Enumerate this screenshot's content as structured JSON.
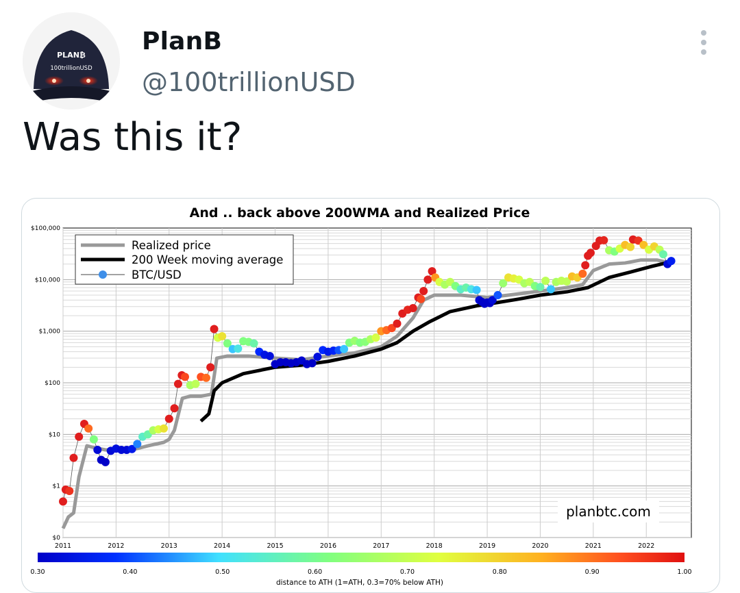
{
  "tweet": {
    "author_name": "PlanB",
    "author_handle": "@100trillionUSD",
    "avatar_cap_text_top": "PLAN₿",
    "avatar_cap_text_bottom": "100trillionUSD",
    "text": "Was this it?",
    "more_icon": "vertical-ellipsis-icon"
  },
  "colors": {
    "ath_high": "#e8332b",
    "ath_low": "#1010e0",
    "realized": "#999999",
    "wma": "#000000",
    "secondary_text": "#536471"
  },
  "chart_data": {
    "type": "scatter",
    "title": "And .. back above 200WMA and Realized Price",
    "watermark": "planbtc.com",
    "y_scale": "log",
    "ylim": [
      0.1,
      100000
    ],
    "xlim": [
      2011,
      2022.85
    ],
    "y_ticks": [
      {
        "value": 0.1,
        "label": "$0"
      },
      {
        "value": 1,
        "label": "$1"
      },
      {
        "value": 10,
        "label": "$10"
      },
      {
        "value": 100,
        "label": "$100"
      },
      {
        "value": 1000,
        "label": "$1,000"
      },
      {
        "value": 10000,
        "label": "$10,000"
      },
      {
        "value": 100000,
        "label": "$100,000"
      }
    ],
    "x_ticks": [
      "2011",
      "2012",
      "2013",
      "2014",
      "2015",
      "2016",
      "2017",
      "2018",
      "2019",
      "2020",
      "2021",
      "2022"
    ],
    "grid": true,
    "legend_position": "top-left",
    "legend": [
      {
        "label": "Realized price",
        "style": "realized"
      },
      {
        "label": "200 Week moving average",
        "style": "wma"
      },
      {
        "label": "BTC/USD",
        "style": "dots"
      }
    ],
    "colorbar": {
      "label": "distance to ATH (1=ATH, 0.3=70% below ATH)",
      "ticks": [
        "0.30",
        "0.40",
        "0.50",
        "0.60",
        "0.70",
        "0.80",
        "0.90",
        "1.00"
      ],
      "min": 0.3,
      "max": 1.0
    },
    "series": [
      {
        "name": "Realized price",
        "points": [
          [
            2011.0,
            0.15
          ],
          [
            2011.1,
            0.25
          ],
          [
            2011.2,
            0.3
          ],
          [
            2011.3,
            1.5
          ],
          [
            2011.45,
            6
          ],
          [
            2011.6,
            5.5
          ],
          [
            2011.8,
            5
          ],
          [
            2012.0,
            5
          ],
          [
            2012.3,
            5
          ],
          [
            2012.6,
            6
          ],
          [
            2012.9,
            7
          ],
          [
            2013.0,
            8
          ],
          [
            2013.1,
            12
          ],
          [
            2013.25,
            50
          ],
          [
            2013.4,
            55
          ],
          [
            2013.6,
            55
          ],
          [
            2013.8,
            60
          ],
          [
            2013.9,
            300
          ],
          [
            2014.1,
            330
          ],
          [
            2014.5,
            330
          ],
          [
            2015.0,
            300
          ],
          [
            2015.5,
            280
          ],
          [
            2016.0,
            330
          ],
          [
            2016.5,
            380
          ],
          [
            2017.0,
            500
          ],
          [
            2017.3,
            800
          ],
          [
            2017.6,
            1800
          ],
          [
            2017.8,
            4000
          ],
          [
            2018.0,
            5000
          ],
          [
            2018.5,
            5000
          ],
          [
            2019.0,
            4500
          ],
          [
            2019.4,
            5000
          ],
          [
            2020.0,
            6000
          ],
          [
            2020.5,
            7000
          ],
          [
            2020.8,
            8000
          ],
          [
            2021.0,
            15000
          ],
          [
            2021.3,
            20000
          ],
          [
            2021.6,
            21000
          ],
          [
            2021.9,
            24000
          ],
          [
            2022.2,
            24000
          ],
          [
            2022.45,
            21000
          ]
        ]
      },
      {
        "name": "200 Week moving average",
        "points": [
          [
            2013.6,
            18
          ],
          [
            2013.75,
            25
          ],
          [
            2013.85,
            70
          ],
          [
            2014.0,
            100
          ],
          [
            2014.4,
            150
          ],
          [
            2015.0,
            200
          ],
          [
            2015.5,
            220
          ],
          [
            2016.0,
            260
          ],
          [
            2016.5,
            330
          ],
          [
            2017.0,
            450
          ],
          [
            2017.3,
            600
          ],
          [
            2017.6,
            1000
          ],
          [
            2017.9,
            1500
          ],
          [
            2018.3,
            2400
          ],
          [
            2018.8,
            3100
          ],
          [
            2019.2,
            3600
          ],
          [
            2019.6,
            4200
          ],
          [
            2020.0,
            5000
          ],
          [
            2020.5,
            5800
          ],
          [
            2020.9,
            7000
          ],
          [
            2021.3,
            11000
          ],
          [
            2021.7,
            14000
          ],
          [
            2022.1,
            18000
          ],
          [
            2022.45,
            22000
          ]
        ]
      },
      {
        "name": "BTC/USD",
        "points": [
          [
            2011.0,
            0.5,
            1.0
          ],
          [
            2011.05,
            0.85,
            1.0
          ],
          [
            2011.12,
            0.8,
            0.95
          ],
          [
            2011.2,
            3.5,
            1.0
          ],
          [
            2011.3,
            9,
            1.0
          ],
          [
            2011.4,
            16,
            1.0
          ],
          [
            2011.48,
            13,
            0.85
          ],
          [
            2011.58,
            8,
            0.55
          ],
          [
            2011.65,
            5,
            0.32
          ],
          [
            2011.72,
            3.2,
            0.3
          ],
          [
            2011.8,
            2.9,
            0.3
          ],
          [
            2011.9,
            4.8,
            0.32
          ],
          [
            2012.0,
            5.3,
            0.33
          ],
          [
            2012.1,
            5,
            0.32
          ],
          [
            2012.2,
            5,
            0.32
          ],
          [
            2012.3,
            5.2,
            0.35
          ],
          [
            2012.4,
            6.5,
            0.42
          ],
          [
            2012.5,
            9,
            0.5
          ],
          [
            2012.6,
            10,
            0.52
          ],
          [
            2012.7,
            12,
            0.6
          ],
          [
            2012.8,
            12.5,
            0.65
          ],
          [
            2012.9,
            13,
            0.7
          ],
          [
            2013.0,
            20,
            1.0
          ],
          [
            2013.1,
            32,
            1.0
          ],
          [
            2013.17,
            95,
            1.0
          ],
          [
            2013.24,
            140,
            1.0
          ],
          [
            2013.3,
            130,
            0.9
          ],
          [
            2013.4,
            90,
            0.6
          ],
          [
            2013.5,
            95,
            0.62
          ],
          [
            2013.6,
            130,
            0.88
          ],
          [
            2013.7,
            125,
            0.85
          ],
          [
            2013.78,
            200,
            1.0
          ],
          [
            2013.85,
            1100,
            1.0
          ],
          [
            2013.92,
            750,
            0.65
          ],
          [
            2014.0,
            800,
            0.7
          ],
          [
            2014.1,
            580,
            0.55
          ],
          [
            2014.2,
            450,
            0.45
          ],
          [
            2014.3,
            460,
            0.48
          ],
          [
            2014.4,
            640,
            0.55
          ],
          [
            2014.5,
            620,
            0.55
          ],
          [
            2014.6,
            580,
            0.52
          ],
          [
            2014.7,
            400,
            0.38
          ],
          [
            2014.8,
            350,
            0.34
          ],
          [
            2014.9,
            330,
            0.33
          ],
          [
            2015.0,
            230,
            0.3
          ],
          [
            2015.1,
            250,
            0.3
          ],
          [
            2015.2,
            250,
            0.3
          ],
          [
            2015.3,
            240,
            0.3
          ],
          [
            2015.4,
            250,
            0.3
          ],
          [
            2015.5,
            270,
            0.31
          ],
          [
            2015.6,
            230,
            0.3
          ],
          [
            2015.7,
            240,
            0.3
          ],
          [
            2015.8,
            320,
            0.33
          ],
          [
            2015.9,
            430,
            0.38
          ],
          [
            2016.0,
            400,
            0.35
          ],
          [
            2016.1,
            420,
            0.37
          ],
          [
            2016.2,
            430,
            0.4
          ],
          [
            2016.3,
            450,
            0.45
          ],
          [
            2016.4,
            600,
            0.55
          ],
          [
            2016.5,
            650,
            0.58
          ],
          [
            2016.6,
            600,
            0.55
          ],
          [
            2016.7,
            620,
            0.56
          ],
          [
            2016.8,
            700,
            0.6
          ],
          [
            2016.9,
            750,
            0.65
          ],
          [
            2017.0,
            1000,
            0.8
          ],
          [
            2017.1,
            1050,
            0.85
          ],
          [
            2017.2,
            1150,
            0.9
          ],
          [
            2017.3,
            1400,
            1.0
          ],
          [
            2017.4,
            2200,
            1.0
          ],
          [
            2017.5,
            2600,
            0.98
          ],
          [
            2017.6,
            2800,
            1.0
          ],
          [
            2017.7,
            4500,
            1.0
          ],
          [
            2017.75,
            4200,
            0.9
          ],
          [
            2017.8,
            6000,
            1.0
          ],
          [
            2017.88,
            10000,
            1.0
          ],
          [
            2017.96,
            14500,
            1.0
          ],
          [
            2018.02,
            11000,
            0.8
          ],
          [
            2018.1,
            9000,
            0.65
          ],
          [
            2018.2,
            8000,
            0.6
          ],
          [
            2018.3,
            9000,
            0.62
          ],
          [
            2018.4,
            7500,
            0.55
          ],
          [
            2018.5,
            6500,
            0.5
          ],
          [
            2018.6,
            7000,
            0.52
          ],
          [
            2018.7,
            6500,
            0.48
          ],
          [
            2018.8,
            6300,
            0.45
          ],
          [
            2018.85,
            4000,
            0.32
          ],
          [
            2018.9,
            3700,
            0.3
          ],
          [
            2018.95,
            3400,
            0.3
          ],
          [
            2019.0,
            3600,
            0.3
          ],
          [
            2019.05,
            3500,
            0.3
          ],
          [
            2019.1,
            4000,
            0.32
          ],
          [
            2019.2,
            5000,
            0.4
          ],
          [
            2019.3,
            8500,
            0.58
          ],
          [
            2019.4,
            11000,
            0.7
          ],
          [
            2019.5,
            10500,
            0.68
          ],
          [
            2019.6,
            10000,
            0.65
          ],
          [
            2019.7,
            8500,
            0.6
          ],
          [
            2019.8,
            9000,
            0.62
          ],
          [
            2019.9,
            7500,
            0.55
          ],
          [
            2020.0,
            7200,
            0.52
          ],
          [
            2020.1,
            9500,
            0.62
          ],
          [
            2020.2,
            6500,
            0.45
          ],
          [
            2020.3,
            9000,
            0.6
          ],
          [
            2020.4,
            9500,
            0.62
          ],
          [
            2020.5,
            9200,
            0.62
          ],
          [
            2020.6,
            11500,
            0.75
          ],
          [
            2020.7,
            11000,
            0.73
          ],
          [
            2020.8,
            13000,
            0.85
          ],
          [
            2020.85,
            19000,
            1.0
          ],
          [
            2020.9,
            29000,
            1.0
          ],
          [
            2020.95,
            33000,
            1.0
          ],
          [
            2021.05,
            45000,
            1.0
          ],
          [
            2021.12,
            57000,
            1.0
          ],
          [
            2021.2,
            58000,
            0.98
          ],
          [
            2021.3,
            37000,
            0.6
          ],
          [
            2021.4,
            35000,
            0.55
          ],
          [
            2021.5,
            40000,
            0.65
          ],
          [
            2021.6,
            47000,
            0.75
          ],
          [
            2021.7,
            43000,
            0.72
          ],
          [
            2021.75,
            60000,
            1.0
          ],
          [
            2021.85,
            57000,
            0.95
          ],
          [
            2021.95,
            47000,
            0.75
          ],
          [
            2022.05,
            38000,
            0.65
          ],
          [
            2022.15,
            44000,
            0.72
          ],
          [
            2022.25,
            38000,
            0.62
          ],
          [
            2022.32,
            31000,
            0.52
          ],
          [
            2022.4,
            20000,
            0.32
          ],
          [
            2022.47,
            23000,
            0.36
          ]
        ]
      }
    ]
  }
}
